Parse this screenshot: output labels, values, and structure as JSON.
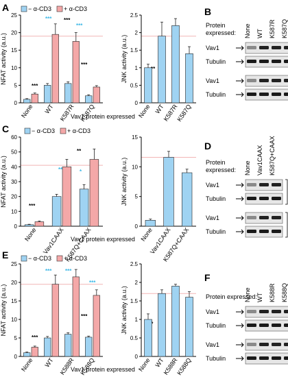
{
  "colors": {
    "light": "#9fd3f2",
    "pink": "#f4a8a8",
    "cyan": "#3db8e6",
    "red": "#e8545a",
    "refline": "#f2b5b5"
  },
  "legend": {
    "minus": "− α-CD3",
    "plus": "+ α-CD3"
  },
  "panels": {
    "A": "A",
    "B": "B",
    "C": "C",
    "D": "D",
    "E": "E",
    "F": "F"
  },
  "stars": {
    "three": "***",
    "two": "**",
    "one": "*"
  },
  "blot": {
    "protein_expressed": "Protein expressed:",
    "protein": "Protein",
    "expressed": "expressed:",
    "vav1": "Vav1",
    "tubulin": "Tubulin",
    "nfat": "NFAT",
    "jnk": "JNK",
    "B_lanes": [
      "None",
      "WT",
      "K587R",
      "K587Q"
    ],
    "D_lanes": [
      "None",
      "Vav1CAAX",
      "K587Q+CAAX"
    ],
    "F_lanes": [
      "None",
      "WT",
      "K588R",
      "K588Q"
    ]
  },
  "xlabel": "Vav1 protein expressed",
  "chart_data": [
    {
      "id": "A-nfat",
      "type": "bar",
      "ylabel": "NFAT activity (a.u.)",
      "ylim": [
        0,
        25
      ],
      "ticks": [
        0,
        5,
        10,
        15,
        20,
        25
      ],
      "categories": [
        "None",
        "WT",
        "K587R",
        "K587Q"
      ],
      "series": [
        {
          "name": "− α-CD3",
          "values": [
            1,
            5,
            5.5,
            2
          ],
          "err": [
            0.2,
            0.5,
            0.5,
            0.3
          ]
        },
        {
          "name": "+ α-CD3",
          "values": [
            2.5,
            19.5,
            17.5,
            4.5
          ],
          "err": [
            0.3,
            3,
            2.5,
            0.4
          ]
        }
      ],
      "refline": 19
    },
    {
      "id": "A-jnk",
      "type": "bar",
      "ylabel": "JNK activity (a.u.)",
      "ylim": [
        0,
        2.5
      ],
      "ticks": [
        0,
        0.5,
        1,
        1.5,
        2,
        2.5
      ],
      "categories": [
        "None",
        "WT",
        "K587R",
        "K587Q"
      ],
      "series": [
        {
          "name": "",
          "values": [
            1,
            1.9,
            2.2,
            1.4
          ],
          "err": [
            0.1,
            0.4,
            0.2,
            0.2
          ]
        }
      ],
      "refline": 1.9
    },
    {
      "id": "C-nfat",
      "type": "bar",
      "ylabel": "NFAT activity (a.u.)",
      "ylim": [
        0,
        60
      ],
      "ticks": [
        0,
        10,
        20,
        30,
        40,
        50,
        60
      ],
      "categories": [
        "None",
        "Vav1CAAX",
        "K587Q+CAAX"
      ],
      "series": [
        {
          "name": "− α-CD3",
          "values": [
            1,
            20,
            25
          ],
          "err": [
            0.3,
            1.5,
            3
          ]
        },
        {
          "name": "+ α-CD3",
          "values": [
            3,
            40,
            45
          ],
          "err": [
            0.5,
            5,
            7
          ]
        }
      ],
      "refline": 41
    },
    {
      "id": "C-jnk",
      "type": "bar",
      "ylabel": "JNK activity (a.u.)",
      "ylim": [
        0,
        15
      ],
      "ticks": [
        0,
        5,
        10,
        15
      ],
      "categories": [
        "None",
        "Vav1CAAX",
        "K587Q+CAAX"
      ],
      "series": [
        {
          "name": "",
          "values": [
            1,
            11.6,
            9
          ],
          "err": [
            0.2,
            1,
            0.6
          ]
        }
      ],
      "refline": 11.6
    },
    {
      "id": "E-nfat",
      "type": "bar",
      "ylabel": "NFAT activity (a.u.)",
      "ylim": [
        0,
        25
      ],
      "ticks": [
        0,
        5,
        10,
        15,
        20,
        25
      ],
      "categories": [
        "None",
        "WT",
        "K588R",
        "K588Q"
      ],
      "series": [
        {
          "name": "− α-CD3",
          "values": [
            1,
            5,
            6,
            5.2
          ],
          "err": [
            0.2,
            0.4,
            0.4,
            0.3
          ]
        },
        {
          "name": "+ α-CD3",
          "values": [
            2.5,
            19.5,
            21.5,
            16.5
          ],
          "err": [
            0.3,
            2.5,
            2,
            1.5
          ]
        }
      ],
      "refline": 19.5
    },
    {
      "id": "E-jnk",
      "type": "bar",
      "ylabel": "JNK activity (a.u.)",
      "ylim": [
        0,
        2.5
      ],
      "ticks": [
        0,
        0.5,
        1,
        1.5,
        2,
        2.5
      ],
      "categories": [
        "None",
        "WT",
        "K588R",
        "K588Q"
      ],
      "series": [
        {
          "name": "",
          "values": [
            1,
            1.7,
            1.9,
            1.6
          ],
          "err": [
            0.15,
            0.1,
            0.05,
            0.15
          ]
        }
      ],
      "refline": 1.7
    }
  ]
}
